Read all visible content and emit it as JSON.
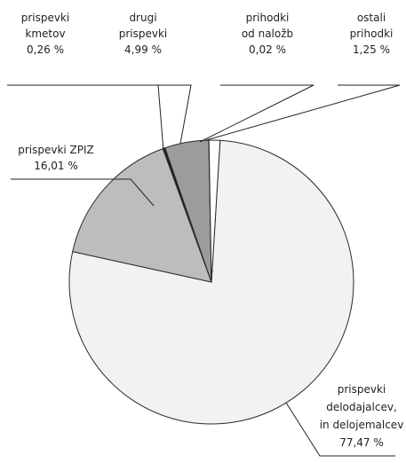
{
  "chart_data": {
    "type": "pie",
    "title": "",
    "slices": [
      {
        "key": "delodajalcev",
        "lines": [
          "prispevki",
          "delodajalcev,",
          "in delojemalcev"
        ],
        "value_label": "77,47 %",
        "value": 77.47,
        "color": "#f2f2f2"
      },
      {
        "key": "zpiz",
        "lines": [
          "prispevki ZPIZ"
        ],
        "value_label": "16,01 %",
        "value": 16.01,
        "color": "#bdbdbd"
      },
      {
        "key": "kmetov",
        "lines": [
          "prispevki",
          "kmetov"
        ],
        "value_label": "0,26 %",
        "value": 0.26,
        "color": "#1e1e1e"
      },
      {
        "key": "drugi",
        "lines": [
          "drugi",
          "prispevki"
        ],
        "value_label": "4,99 %",
        "value": 4.99,
        "color": "#9c9c9c"
      },
      {
        "key": "nalozb",
        "lines": [
          "prihodki",
          "od naložb"
        ],
        "value_label": "0,02 %",
        "value": 0.02,
        "color": "#555555"
      },
      {
        "key": "ostali",
        "lines": [
          "ostali",
          "prihodki"
        ],
        "value_label": "1,25 %",
        "value": 1.25,
        "color": "#ffffff"
      }
    ]
  }
}
